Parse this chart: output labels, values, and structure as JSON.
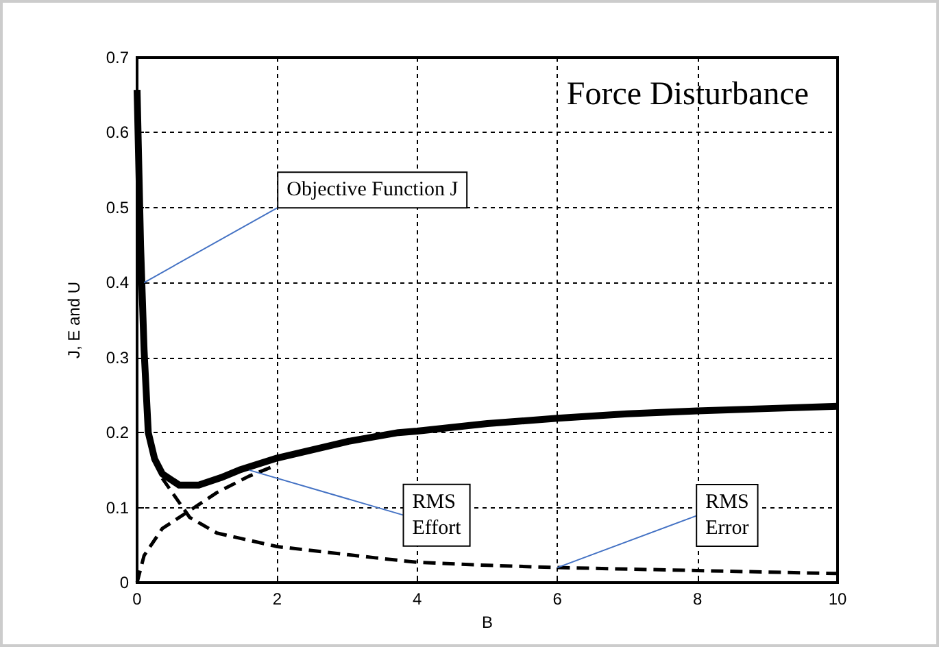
{
  "chart_data": {
    "type": "line",
    "title": "Force Disturbance",
    "xlabel": "B",
    "ylabel": "J, E and U",
    "xlim": [
      0,
      10
    ],
    "xticks": [
      0,
      2,
      4,
      6,
      8,
      10
    ],
    "ylim": [
      0,
      0.7
    ],
    "yticks": [
      0,
      0.1,
      0.2,
      0.3,
      0.4,
      0.5,
      0.6,
      0.7
    ],
    "grid": true,
    "marker": "none",
    "series": [
      {
        "color": "#000000",
        "line_style": "solid",
        "x": [
          0,
          0.05,
          0.1,
          0.16,
          0.25,
          0.36,
          0.6,
          0.88,
          1.2,
          1.46,
          2,
          3,
          3.73,
          4,
          5,
          6,
          7,
          8,
          9,
          10
        ],
        "values": [
          0.657,
          0.45,
          0.31,
          0.2,
          0.165,
          0.145,
          0.13,
          0.13,
          0.14,
          0.15,
          0.166,
          0.188,
          0.2,
          0.202,
          0.212,
          0.219,
          0.225,
          0.229,
          0.232,
          0.235
        ]
      },
      {
        "color": "#000000",
        "line_style": "dashed",
        "x": [
          0,
          0.1,
          0.36,
          0.75,
          1.14,
          1.6,
          2
        ],
        "values": [
          0,
          0.036,
          0.072,
          0.096,
          0.12,
          0.142,
          0.157
        ]
      },
      {
        "color": "#000000",
        "line_style": "dashed",
        "x": [
          0.36,
          0.75,
          1.14,
          2,
          3.4,
          4,
          5,
          6,
          7,
          8,
          9,
          10
        ],
        "values": [
          0.139,
          0.087,
          0.066,
          0.048,
          0.033,
          0.027,
          0.023,
          0.02,
          0.018,
          0.016,
          0.014,
          0.012
        ]
      }
    ],
    "annotations": [
      {
        "text": "Objective Function J",
        "x": 0.1,
        "y": 0.4
      },
      {
        "text": "RMS\nEffort",
        "x": 1.6,
        "y": 0.15
      },
      {
        "text": "RMS\nError",
        "x": 6,
        "y": 0.02
      }
    ]
  }
}
